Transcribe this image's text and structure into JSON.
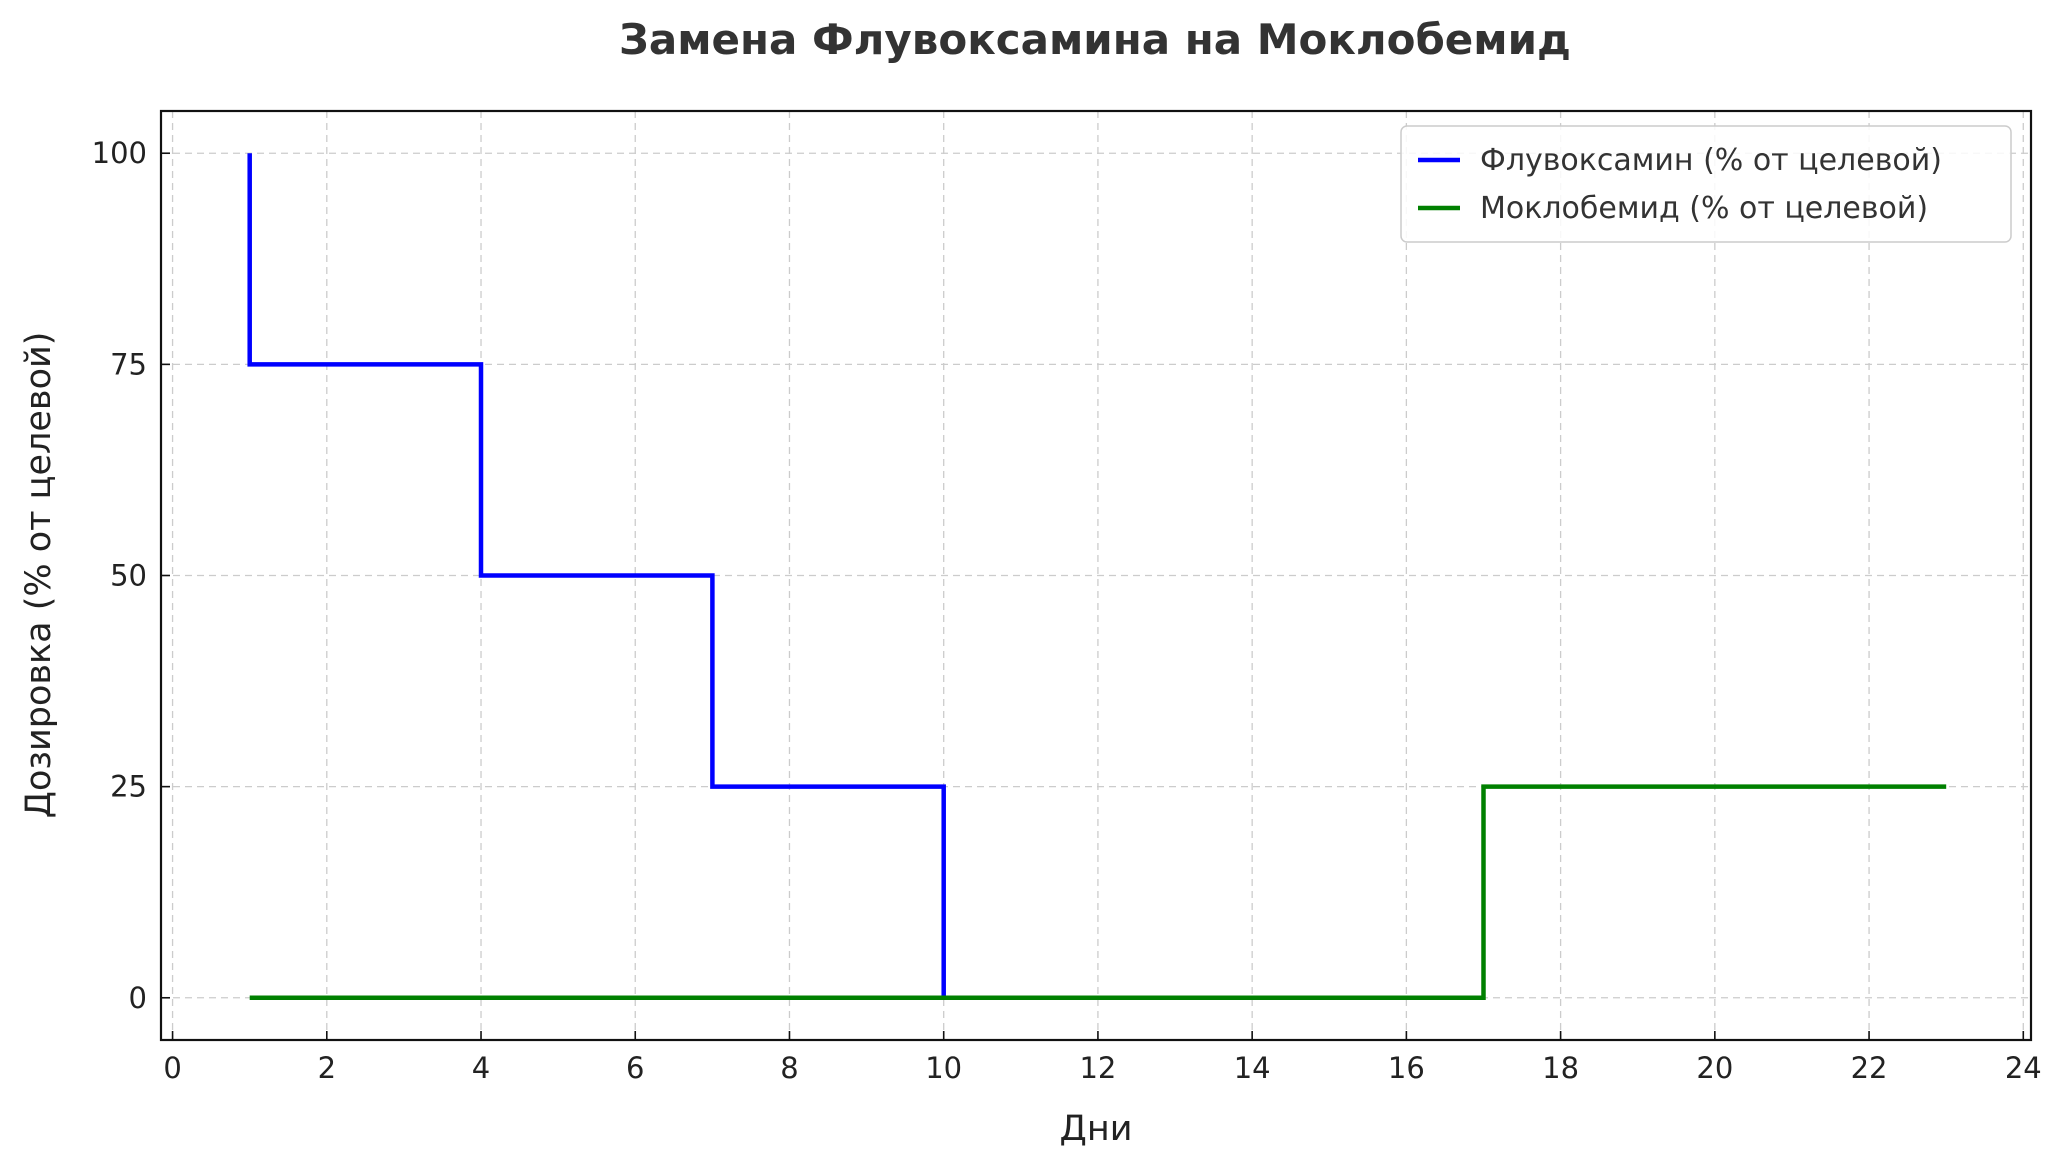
{
  "chart_data": {
    "type": "line",
    "step": "post",
    "title": "Замена Флувоксамина на Моклобемид",
    "xlabel": "Дни",
    "ylabel": "Дозировка (% от целевой)",
    "xlim": [
      -0.15,
      24.1
    ],
    "ylim": [
      -5,
      105
    ],
    "xticks": [
      0,
      2,
      4,
      6,
      8,
      10,
      12,
      14,
      16,
      18,
      20,
      22,
      24
    ],
    "yticks": [
      0,
      25,
      50,
      75,
      100
    ],
    "grid": true,
    "legend": "top-right",
    "series": [
      {
        "name": "Флувоксамин (% от целевой)",
        "color": "#0000ff",
        "x": [
          1,
          1,
          4,
          4,
          7,
          7,
          10,
          10,
          15
        ],
        "y": [
          100,
          75,
          75,
          50,
          50,
          25,
          25,
          0,
          0
        ]
      },
      {
        "name": "Моклобемид (% от целевой)",
        "color": "#008000",
        "x": [
          1,
          17,
          17,
          23
        ],
        "y": [
          0,
          0,
          25,
          25
        ]
      }
    ]
  }
}
